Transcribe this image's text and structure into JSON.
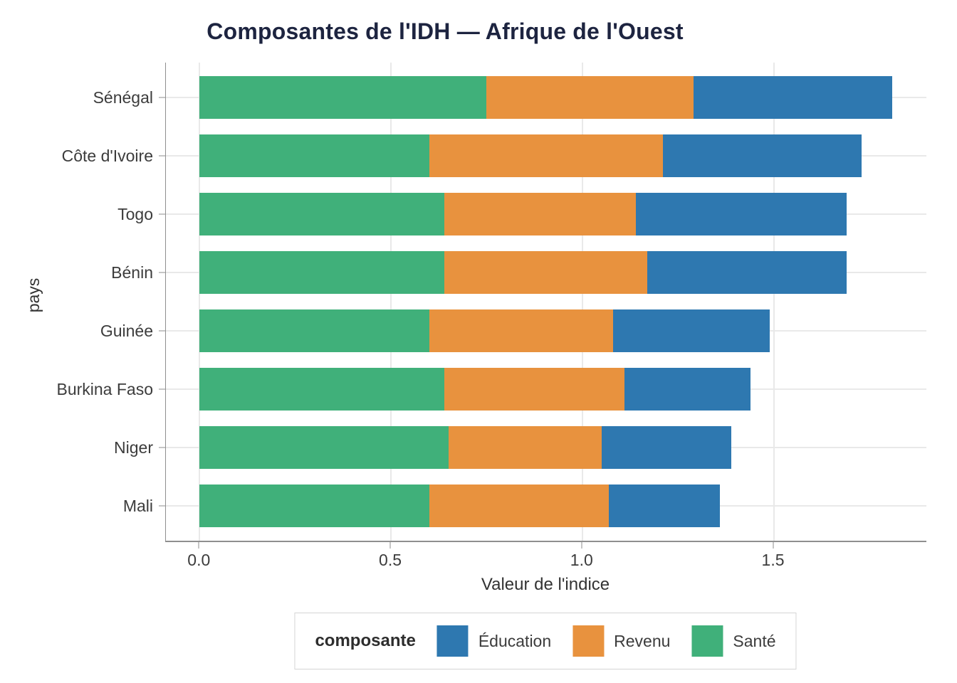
{
  "title": "Composantes de l'IDH — Afrique de l'Ouest",
  "chart_data": {
    "type": "bar",
    "orientation": "horizontal",
    "stacked": true,
    "title": "Composantes de l'IDH — Afrique de l'Ouest",
    "xlabel": "Valeur de l'indice",
    "ylabel": "pays",
    "categories": [
      "Sénégal",
      "Côte d'Ivoire",
      "Togo",
      "Bénin",
      "Guinée",
      "Burkina Faso",
      "Niger",
      "Mali"
    ],
    "series": [
      {
        "name": "Éducation",
        "color": "#2E78B0",
        "values": [
          0.52,
          0.52,
          0.55,
          0.52,
          0.41,
          0.33,
          0.34,
          0.29
        ]
      },
      {
        "name": "Revenu",
        "color": "#E8923E",
        "values": [
          0.54,
          0.61,
          0.5,
          0.53,
          0.48,
          0.47,
          0.4,
          0.47
        ]
      },
      {
        "name": "Santé",
        "color": "#40B07A",
        "values": [
          0.75,
          0.6,
          0.64,
          0.64,
          0.6,
          0.64,
          0.65,
          0.6
        ]
      }
    ],
    "stack_order": [
      "Santé",
      "Revenu",
      "Éducation"
    ],
    "x_ticks": [
      0.0,
      0.5,
      1.0,
      1.5
    ],
    "x_tick_labels": [
      "0.0",
      "0.5",
      "1.0",
      "1.5"
    ],
    "xlim": [
      -0.088,
      1.899
    ],
    "legend_title": "composante",
    "legend_position": "bottom",
    "grid": true
  },
  "colors": {
    "title_text": "#1D2440",
    "axis_text": "#3C3C3C",
    "gridline": "#E9E9E9",
    "axis_line": "#8F8F8F",
    "tick_mark": "#C6C6C6",
    "legend_border": "#D5D5D5",
    "background": "#FFFFFF"
  }
}
